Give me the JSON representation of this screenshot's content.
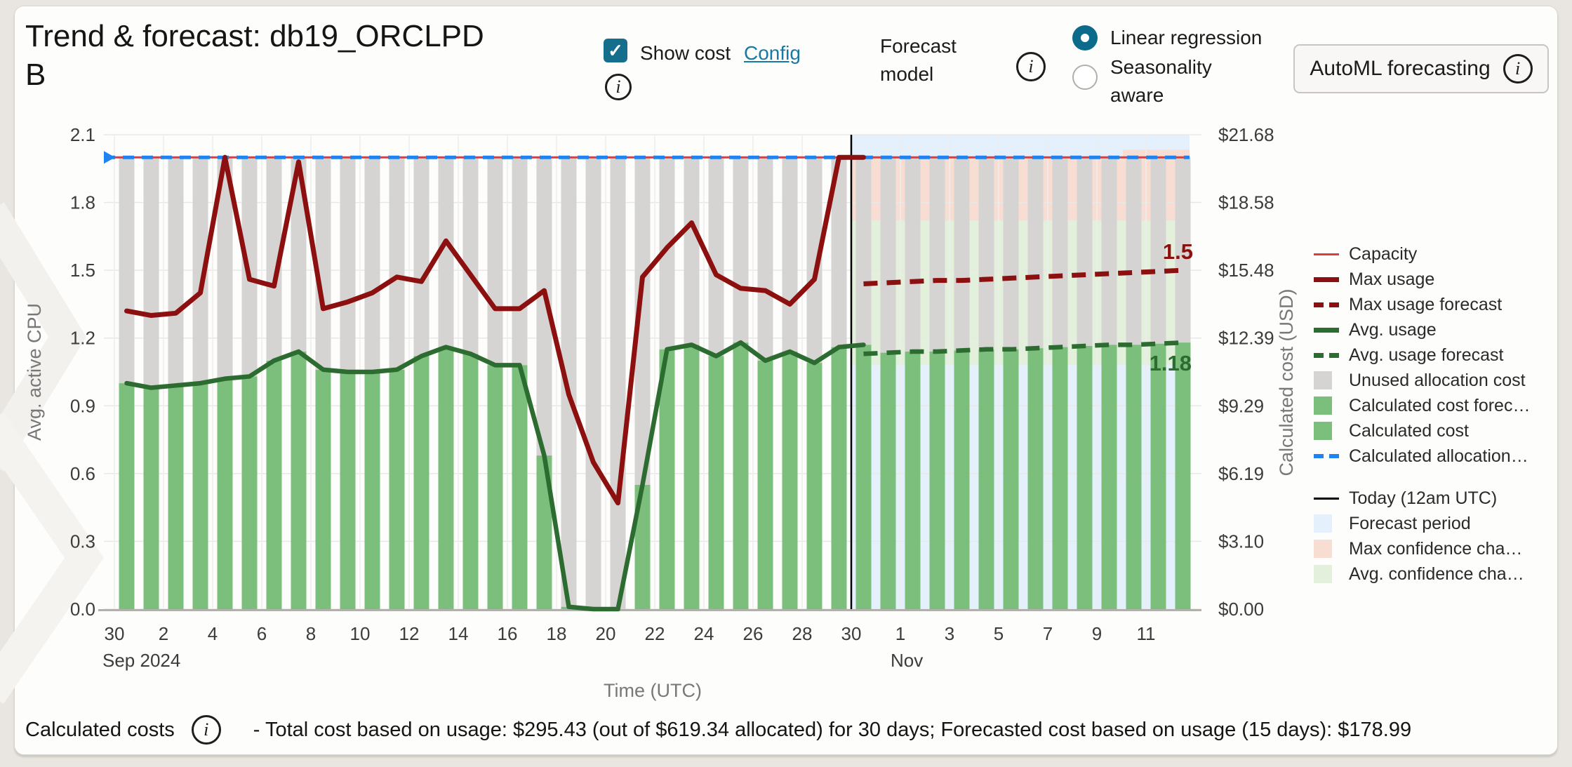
{
  "header": {
    "title": "Trend & forecast: db19_ORCLPDB",
    "show_cost_label": "Show cost",
    "config_label": "Config",
    "forecast_model_label": "Forecast model",
    "radio_linear": "Linear regression",
    "radio_seasonality": "Seasonality aware",
    "automl_button": "AutoML forecasting"
  },
  "icons": {
    "info_glyph": "i",
    "check_glyph": "✓"
  },
  "footer": {
    "label": "Calculated costs",
    "text": "- Total cost based on usage: $295.43 (out of $619.34 allocated) for 30 days; Forecasted cost based on usage (15 days): $178.99"
  },
  "legend": {
    "groups": [
      {
        "items": [
          {
            "label": "Capacity",
            "swatch": "line",
            "color": "#e0393f",
            "h": 3
          },
          {
            "label": "Max usage",
            "swatch": "line",
            "color": "#8c1010",
            "h": 7
          },
          {
            "label": "Max usage forecast",
            "swatch": "dash",
            "color": "#8c1010",
            "h": 7
          },
          {
            "label": "Avg. usage",
            "swatch": "line",
            "color": "#2d6c30",
            "h": 7
          },
          {
            "label": "Avg. usage forecast",
            "swatch": "dash",
            "color": "#2d6c30",
            "h": 7
          },
          {
            "label": "Unused allocation cost",
            "swatch": "square",
            "color": "#d5d4d2"
          },
          {
            "label": "Calculated cost forec…",
            "swatch": "square",
            "color": "#7cbe7c"
          },
          {
            "label": "Calculated cost",
            "swatch": "square",
            "color": "#7cbe7c"
          },
          {
            "label": "Calculated allocation…",
            "swatch": "dash",
            "color": "#1e82f0",
            "h": 6
          }
        ]
      },
      {
        "items": [
          {
            "label": "Today (12am UTC)",
            "swatch": "line",
            "color": "#000000",
            "h": 3
          },
          {
            "label": "Forecast period",
            "swatch": "square",
            "color": "#e4f1fc"
          },
          {
            "label": "Max confidence cha…",
            "swatch": "square",
            "color": "#f7ddd2"
          },
          {
            "label": "Avg. confidence cha…",
            "swatch": "square",
            "color": "#e3f0dc"
          }
        ]
      }
    ]
  },
  "chart_data": {
    "type": "bar+line combo with forecast",
    "x_dates": [
      "Sep 30",
      "Oct 1",
      "Oct 2",
      "Oct 3",
      "Oct 4",
      "Oct 5",
      "Oct 6",
      "Oct 7",
      "Oct 8",
      "Oct 9",
      "Oct 10",
      "Oct 11",
      "Oct 12",
      "Oct 13",
      "Oct 14",
      "Oct 15",
      "Oct 16",
      "Oct 17",
      "Oct 18",
      "Oct 19",
      "Oct 20",
      "Oct 21",
      "Oct 22",
      "Oct 23",
      "Oct 24",
      "Oct 25",
      "Oct 26",
      "Oct 27",
      "Oct 28",
      "Oct 29",
      "Oct 30",
      "Oct 31",
      "Nov 1",
      "Nov 2",
      "Nov 3",
      "Nov 4",
      "Nov 5",
      "Nov 6",
      "Nov 7",
      "Nov 8",
      "Nov 9",
      "Nov 10",
      "Nov 11",
      "Nov 12"
    ],
    "today_index": 30,
    "capacity": 2.0,
    "allocation": 2.0,
    "max_usage": [
      1.32,
      1.3,
      1.31,
      1.4,
      2.0,
      1.46,
      1.43,
      1.98,
      1.33,
      1.36,
      1.4,
      1.47,
      1.45,
      1.63,
      1.48,
      1.33,
      1.33,
      1.41,
      0.95,
      0.65,
      0.47,
      1.47,
      1.6,
      1.71,
      1.48,
      1.42,
      1.41,
      1.35,
      1.46,
      2.0,
      2.0
    ],
    "avg_usage": [
      1.0,
      0.98,
      0.99,
      1.0,
      1.02,
      1.03,
      1.1,
      1.14,
      1.06,
      1.05,
      1.05,
      1.06,
      1.12,
      1.16,
      1.13,
      1.08,
      1.08,
      0.68,
      0.01,
      0.0,
      0.0,
      0.55,
      1.15,
      1.17,
      1.12,
      1.18,
      1.1,
      1.14,
      1.09,
      1.16,
      1.17
    ],
    "max_forecast": [
      1.44,
      1.445,
      1.45,
      1.455,
      1.455,
      1.46,
      1.465,
      1.47,
      1.475,
      1.48,
      1.485,
      1.49,
      1.495,
      1.5
    ],
    "avg_forecast": [
      1.13,
      1.135,
      1.14,
      1.14,
      1.145,
      1.15,
      1.15,
      1.155,
      1.16,
      1.165,
      1.17,
      1.17,
      1.175,
      1.18
    ],
    "bars": [
      1.0,
      0.98,
      0.99,
      1.0,
      1.02,
      1.03,
      1.1,
      1.14,
      1.06,
      1.05,
      1.05,
      1.06,
      1.12,
      1.16,
      1.13,
      1.08,
      1.08,
      0.68,
      0.01,
      0.0,
      0.0,
      0.55,
      1.15,
      1.17,
      1.12,
      1.18,
      1.1,
      1.14,
      1.09,
      1.16,
      1.17,
      1.135,
      1.14,
      1.14,
      1.145,
      1.15,
      1.15,
      1.155,
      1.16,
      1.165,
      1.17,
      1.17,
      1.175,
      1.18
    ],
    "bands": {
      "max_channel": [
        1.72,
        2.0
      ],
      "avg_channel": [
        1.08,
        1.72
      ]
    },
    "annotations": {
      "max_forecast_label": "1.5",
      "avg_forecast_label": "1.18"
    },
    "y_left": {
      "title": "Avg. active CPU",
      "ticks": [
        0.0,
        0.3,
        0.6,
        0.9,
        1.2,
        1.5,
        1.8,
        2.1
      ],
      "max": 2.1
    },
    "y_right": {
      "title": "Calculated cost (USD)",
      "ticks": [
        "$0.00",
        "$3.10",
        "$6.19",
        "$9.29",
        "$12.39",
        "$15.48",
        "$18.58",
        "$21.68"
      ]
    },
    "x_axis": {
      "title": "Time (UTC)",
      "tick_indices": [
        0,
        2,
        4,
        6,
        8,
        10,
        12,
        14,
        16,
        18,
        20,
        22,
        24,
        26,
        28,
        30,
        32,
        34,
        36,
        38,
        40,
        42
      ],
      "tick_labels": [
        "30",
        "2",
        "4",
        "6",
        "8",
        "10",
        "12",
        "14",
        "16",
        "18",
        "20",
        "22",
        "24",
        "26",
        "28",
        "30",
        "1",
        "3",
        "5",
        "7",
        "9",
        "11"
      ],
      "context_labels": [
        {
          "text": "Sep 2024",
          "index": 0
        },
        {
          "text": "Nov",
          "index": 32
        }
      ]
    },
    "colors": {
      "bar_green": "#7cbe7c",
      "bar_gray": "#d5d4d2",
      "max_red": "#8c1010",
      "avg_green": "#2d6c30",
      "allocation_blue": "#1e82f0",
      "capacity_red": "#e0393f",
      "forecast_period": "#e4f1fc",
      "max_confidence": "#f7ddd2",
      "avg_confidence": "#e3f0dc",
      "today": "#000000",
      "grid": "#e8e8e6",
      "grid_v": "#ededeb",
      "axis_text": "#3c3c3c",
      "axis_title": "#787878",
      "baseline": "#b2b0ad"
    }
  }
}
